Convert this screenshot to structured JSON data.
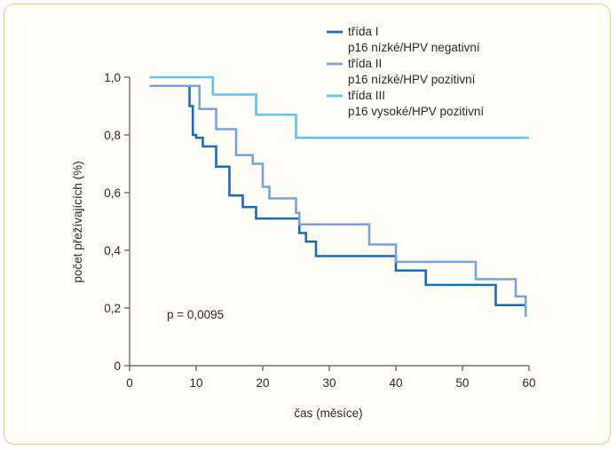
{
  "chart_data": {
    "type": "line",
    "step": true,
    "xlabel": "čas (měsíce)",
    "ylabel": "počet přežívajících (%)",
    "xlim": [
      0,
      60
    ],
    "ylim": [
      0,
      1.0
    ],
    "x_ticks": [
      "0",
      "10",
      "20",
      "30",
      "40",
      "50",
      "60"
    ],
    "y_ticks": [
      "0",
      "0,2",
      "0,4",
      "0,6",
      "0,8",
      "1,0"
    ],
    "grid": false,
    "legend_position": "top-right",
    "annotation": "p = 0,0095",
    "series": [
      {
        "name": "třída I",
        "subtitle": "p16 nízké/HPV negativní",
        "color": "#1a6db5",
        "x": [
          3,
          7,
          9,
          9.5,
          10,
          11,
          13,
          15,
          17,
          19,
          25,
          25.5,
          26.5,
          28,
          40,
          44.5,
          55,
          59.5
        ],
        "y": [
          0.97,
          0.97,
          0.9,
          0.8,
          0.79,
          0.76,
          0.69,
          0.59,
          0.55,
          0.51,
          0.51,
          0.46,
          0.43,
          0.38,
          0.33,
          0.28,
          0.21,
          0.21
        ]
      },
      {
        "name": "třída II",
        "subtitle": "p16 nízké/HPV pozitivní",
        "color": "#7aa2d6",
        "x": [
          3,
          8,
          10.5,
          13,
          16,
          18.5,
          20,
          21,
          25,
          25.5,
          36,
          40,
          52,
          58,
          59.5
        ],
        "y": [
          0.97,
          0.97,
          0.89,
          0.82,
          0.73,
          0.7,
          0.62,
          0.58,
          0.53,
          0.49,
          0.42,
          0.36,
          0.3,
          0.24,
          0.17
        ]
      },
      {
        "name": "třída III",
        "subtitle": "p16 vysoké/HPV pozitivní",
        "color": "#5ec4ec",
        "x": [
          3,
          12.5,
          19,
          25,
          60
        ],
        "y": [
          1.0,
          0.94,
          0.87,
          0.79,
          0.79
        ]
      }
    ]
  }
}
